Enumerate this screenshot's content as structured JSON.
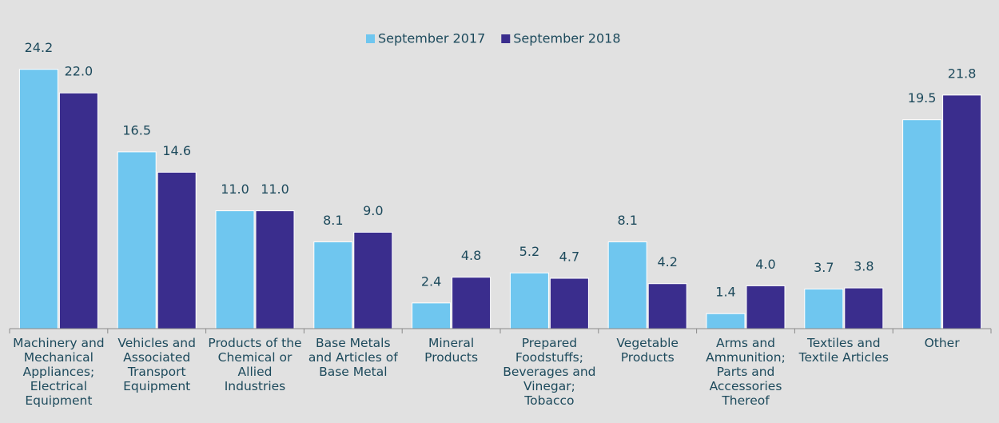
{
  "chart_data": {
    "type": "bar",
    "categories": [
      "Machinery and Mechanical Appliances; Electrical Equipment",
      "Vehicles and Associated Transport Equipment",
      "Products of the Chemical or Allied Industries",
      "Base Metals and Articles of Base Metal",
      "Mineral Products",
      "Prepared Foodstuffs; Beverages and Vinegar; Tobacco",
      "Vegetable Products",
      "Arms and Ammunition; Parts and Accessories Thereof",
      "Textiles and Textile Articles",
      "Other"
    ],
    "series": [
      {
        "name": "September 2017",
        "color": "#6fc6ef",
        "values": [
          24.2,
          16.5,
          11.0,
          8.1,
          2.4,
          5.2,
          8.1,
          1.4,
          3.7,
          19.5
        ],
        "value_labels": [
          "24.2",
          "16.5",
          "11.0",
          "8.1",
          "2.4",
          "5.2",
          "8.1",
          "1.4",
          "3.7",
          "19.5"
        ]
      },
      {
        "name": "September 2018",
        "color": "#3a2d8d",
        "values": [
          22.0,
          14.6,
          11.0,
          9.0,
          4.8,
          4.7,
          4.2,
          4.0,
          3.8,
          21.8
        ],
        "value_labels": [
          "22.0",
          "14.6",
          "11.0",
          "9.0",
          "4.8",
          "4.7",
          "4.2",
          "4.0",
          "3.8",
          "21.8"
        ]
      }
    ],
    "ylim": [
      0,
      30
    ],
    "legend": "top"
  }
}
